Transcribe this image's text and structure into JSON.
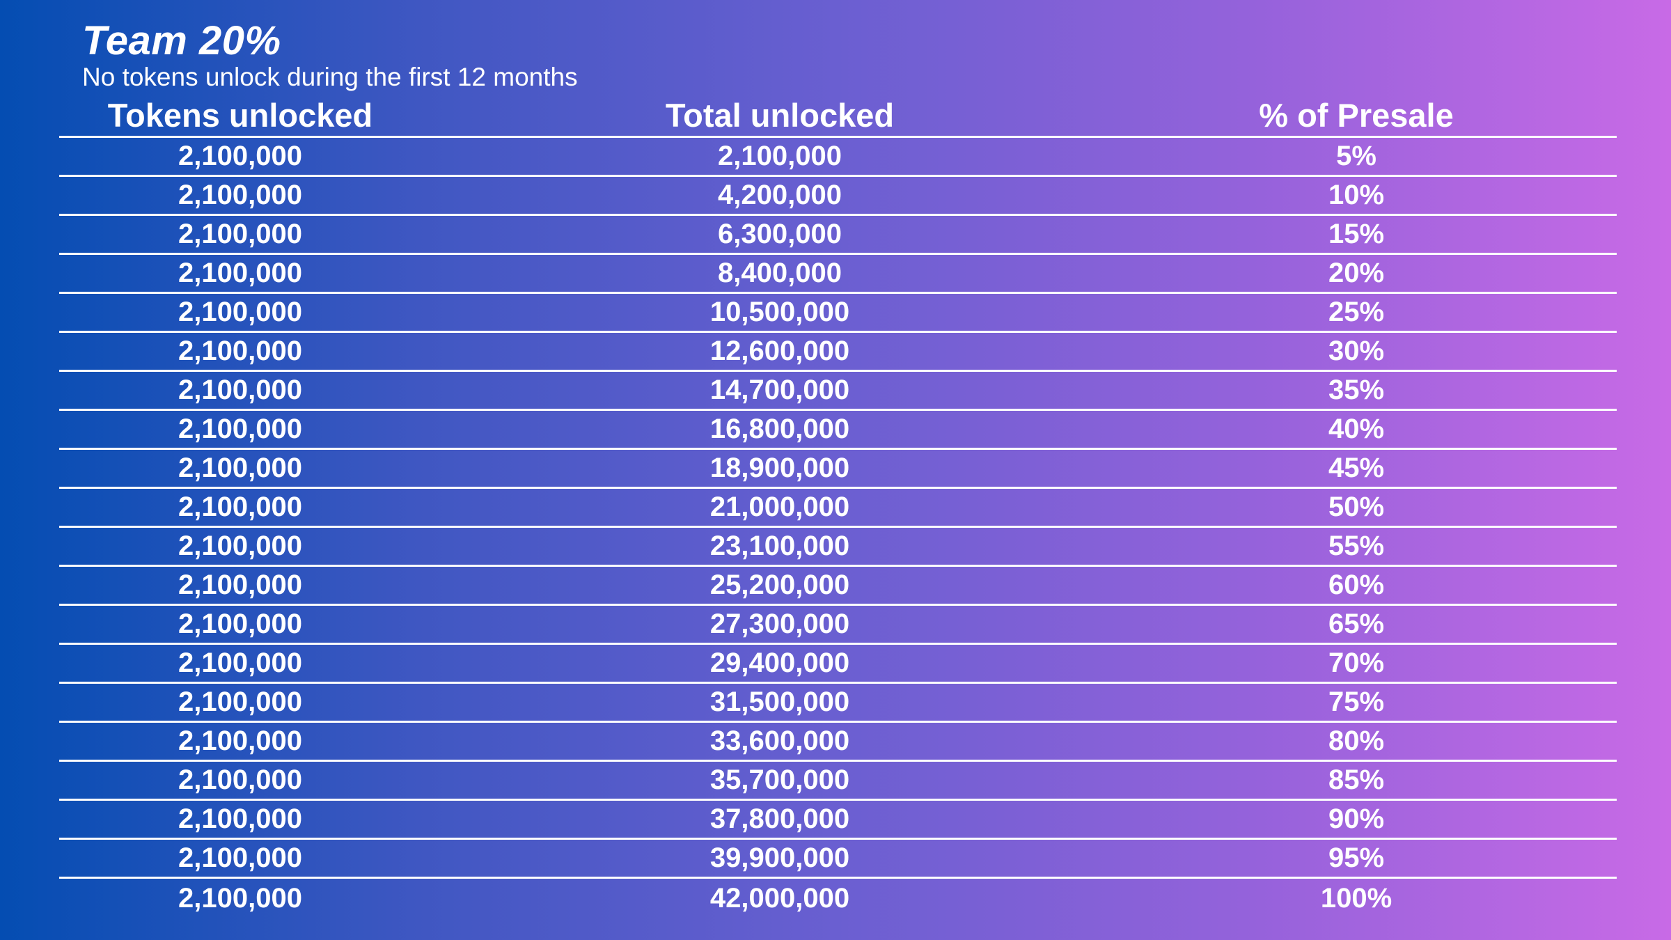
{
  "title": "Team 20%",
  "subtitle": "No tokens unlock during the first 12 months",
  "table": {
    "headers": [
      "Tokens unlocked",
      "Total unlocked",
      "% of Presale"
    ],
    "rows": [
      [
        "2,100,000",
        "2,100,000",
        "5%"
      ],
      [
        "2,100,000",
        "4,200,000",
        "10%"
      ],
      [
        "2,100,000",
        "6,300,000",
        "15%"
      ],
      [
        "2,100,000",
        "8,400,000",
        "20%"
      ],
      [
        "2,100,000",
        "10,500,000",
        "25%"
      ],
      [
        "2,100,000",
        "12,600,000",
        "30%"
      ],
      [
        "2,100,000",
        "14,700,000",
        "35%"
      ],
      [
        "2,100,000",
        "16,800,000",
        "40%"
      ],
      [
        "2,100,000",
        "18,900,000",
        "45%"
      ],
      [
        "2,100,000",
        "21,000,000",
        "50%"
      ],
      [
        "2,100,000",
        "23,100,000",
        "55%"
      ],
      [
        "2,100,000",
        "25,200,000",
        "60%"
      ],
      [
        "2,100,000",
        "27,300,000",
        "65%"
      ],
      [
        "2,100,000",
        "29,400,000",
        "70%"
      ],
      [
        "2,100,000",
        "31,500,000",
        "75%"
      ],
      [
        "2,100,000",
        "33,600,000",
        "80%"
      ],
      [
        "2,100,000",
        "35,700,000",
        "85%"
      ],
      [
        "2,100,000",
        "37,800,000",
        "90%"
      ],
      [
        "2,100,000",
        "39,900,000",
        "95%"
      ],
      [
        "2,100,000",
        "42,000,000",
        "100%"
      ]
    ]
  },
  "colors": {
    "gradient_start": "#044db2",
    "gradient_end": "#c86ae6",
    "text": "#ffffff",
    "rule": "#ffffff"
  }
}
